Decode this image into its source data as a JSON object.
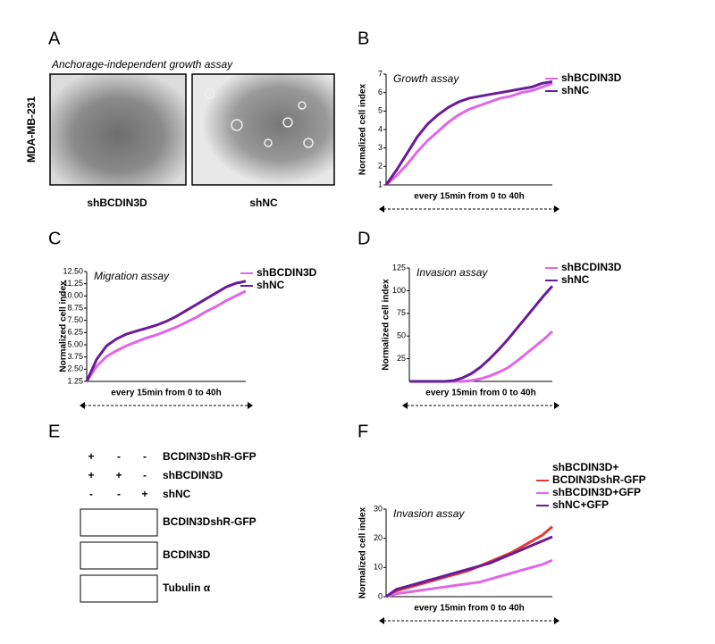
{
  "panel_labels": [
    "A",
    "B",
    "C",
    "D",
    "E",
    "F"
  ],
  "panel_a": {
    "title": "Anchorage-independent growth assay",
    "row_label": "MDA-MB-231",
    "captions": [
      "shBCDIN3D",
      "shNC"
    ]
  },
  "panel_e": {
    "conditions": [
      [
        "+",
        "-",
        "-",
        "BCDIN3DshR-GFP"
      ],
      [
        "+",
        "+",
        "-",
        "shBCDIN3D"
      ],
      [
        "-",
        "-",
        "+",
        "shNC"
      ]
    ],
    "blots": [
      "BCDIN3DshR-GFP",
      "BCDIN3D",
      "Tubulin α"
    ]
  },
  "chart_data": [
    {
      "type": "line",
      "title": "Growth assay",
      "y_label": "Normalized cell index",
      "x_label": "every 15min from 0 to 40h",
      "ylim": [
        1,
        7
      ],
      "yticks": [
        1,
        2,
        3,
        4,
        5,
        6,
        7
      ],
      "series": [
        {
          "name": "shBCDIN3D",
          "color": "#e066e6",
          "values": [
            1,
            1.5,
            2.1,
            2.8,
            3.4,
            3.9,
            4.4,
            4.8,
            5.1,
            5.3,
            5.5,
            5.7,
            5.8,
            6.0,
            6.1,
            6.3,
            6.5
          ]
        },
        {
          "name": "shNC",
          "color": "#6a1b9a",
          "values": [
            1,
            1.8,
            2.7,
            3.6,
            4.3,
            4.8,
            5.2,
            5.5,
            5.7,
            5.8,
            5.9,
            6.0,
            6.1,
            6.2,
            6.3,
            6.5,
            6.6
          ]
        }
      ]
    },
    {
      "type": "line",
      "title": "Migration assay",
      "y_label": "Normalized cell index",
      "x_label": "every 15min from 0 to 40h",
      "ylim": [
        1.25,
        12.5
      ],
      "yticks": [
        1.25,
        {
          "value": 2.5,
          "label": "2.50"
        },
        3.75,
        {
          "value": 5,
          "label": "5.00"
        },
        6.25,
        {
          "value": 7.5,
          "label": "7.50"
        },
        8.75,
        {
          "value": 10,
          "label": "10.00"
        },
        11.25,
        {
          "value": 12.5,
          "label": "12.50"
        }
      ],
      "series": [
        {
          "name": "shBCDIN3D",
          "color": "#e066e6",
          "values": [
            1.25,
            2.8,
            3.8,
            4.4,
            4.9,
            5.3,
            5.7,
            6.0,
            6.4,
            6.8,
            7.3,
            7.8,
            8.4,
            8.9,
            9.5,
            10.0,
            10.5
          ]
        },
        {
          "name": "shNC",
          "color": "#6a1b9a",
          "values": [
            1.25,
            3.5,
            4.9,
            5.6,
            6.1,
            6.4,
            6.7,
            7.0,
            7.4,
            7.9,
            8.5,
            9.1,
            9.7,
            10.3,
            10.9,
            11.3,
            11.5
          ]
        }
      ]
    },
    {
      "type": "line",
      "title": "Invasion assay",
      "y_label": "Normalized cell index",
      "x_label": "every 15min from 0 to 40h",
      "ylim": [
        0,
        125
      ],
      "yticks": [
        25,
        50,
        75,
        100,
        125
      ],
      "series": [
        {
          "name": "shBCDIN3D",
          "color": "#e066e6",
          "values": [
            0,
            0,
            0,
            0,
            0,
            0,
            0,
            1,
            3,
            6,
            10,
            15,
            22,
            30,
            38,
            46,
            55
          ]
        },
        {
          "name": "shNC",
          "color": "#6a1b9a",
          "values": [
            0,
            0,
            0,
            0,
            0,
            1,
            4,
            9,
            16,
            25,
            35,
            46,
            58,
            70,
            82,
            94,
            105
          ]
        }
      ]
    },
    {
      "type": "line",
      "title": "Invasion assay",
      "y_label": "Normalized cell index",
      "x_label": "every 15min from 0 to 40h",
      "ylim": [
        0,
        30
      ],
      "yticks": [
        0,
        10,
        20,
        30
      ],
      "series": [
        {
          "name": "shBCDIN3D+\nBCDIN3DshR-GFP",
          "color": "#e53935",
          "values": [
            0,
            2,
            3,
            4,
            5,
            6,
            7,
            8,
            9,
            10.5,
            12,
            13.5,
            15,
            17,
            19,
            21,
            24
          ]
        },
        {
          "name": "shBCDIN3D+GFP",
          "color": "#e066e6",
          "values": [
            0,
            1,
            1.5,
            2,
            2.5,
            3,
            3.5,
            4,
            4.5,
            5,
            6,
            7,
            8,
            9,
            10,
            11,
            12.5
          ]
        },
        {
          "name": "shNC+GFP",
          "color": "#6a1b9a",
          "values": [
            0,
            2.5,
            3.5,
            4.5,
            5.5,
            6.5,
            7.5,
            8.5,
            9.5,
            10.5,
            11.5,
            13,
            14.5,
            16,
            17.5,
            19,
            20.5
          ]
        }
      ]
    }
  ]
}
